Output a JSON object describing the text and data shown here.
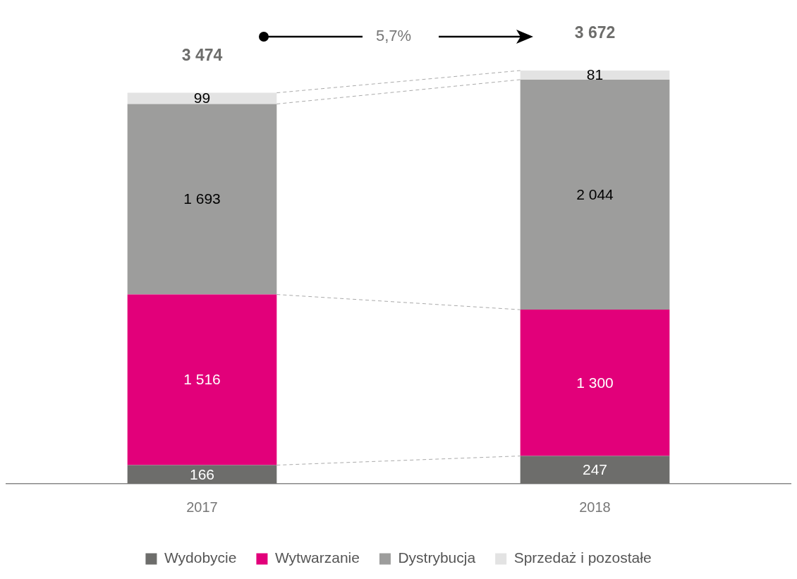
{
  "chart_data": {
    "type": "bar",
    "stacked": true,
    "categories": [
      "2017",
      "2018"
    ],
    "series": [
      {
        "name": "Wydobycie",
        "color": "#6d6d6b",
        "values": [
          166,
          247
        ],
        "value_labels": [
          "166",
          "247"
        ]
      },
      {
        "name": "Wytwarzanie",
        "color": "#e2007a",
        "values": [
          1516,
          1300
        ],
        "value_labels": [
          "1 516",
          "1 300"
        ]
      },
      {
        "name": "Dystrybucja",
        "color": "#9d9d9c",
        "values": [
          1693,
          2044
        ],
        "value_labels": [
          "1 693",
          "2 044"
        ]
      },
      {
        "name": "Sprzedaż i pozostałe",
        "color": "#e3e3e3",
        "values": [
          99,
          81
        ],
        "value_labels": [
          "99",
          "81"
        ]
      }
    ],
    "totals": [
      "3 474",
      "3 672"
    ],
    "annotations": [
      "5,7%"
    ],
    "legend": "bottom",
    "grid": false,
    "tick_labels": "x"
  }
}
